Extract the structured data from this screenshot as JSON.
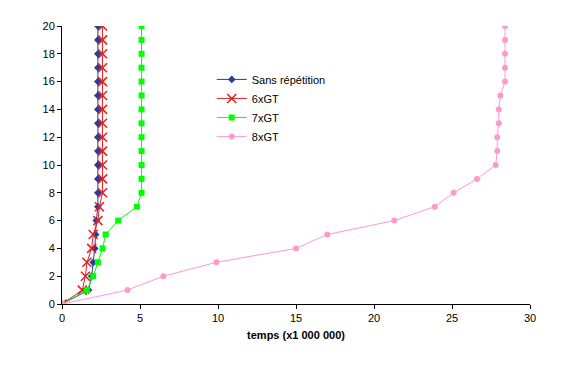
{
  "chart_data": {
    "type": "line",
    "x_label": "temps (x1 000 000)",
    "xlim": [
      0,
      30
    ],
    "xticks": [
      0,
      5,
      10,
      15,
      20,
      25,
      30
    ],
    "ylim": [
      0,
      20
    ],
    "yticks": [
      0,
      2,
      4,
      6,
      8,
      10,
      12,
      14,
      16,
      18,
      20
    ],
    "grid": false,
    "legend": "top",
    "series": [
      {
        "name": "Sans répétition",
        "color": "#2a3c9c",
        "marker": "diamond",
        "line_style": "solid",
        "x": [
          0,
          1.7,
          1.9,
          2.0,
          2.1,
          2.15,
          2.2,
          2.3,
          2.3,
          2.3,
          2.3,
          2.3,
          2.3,
          2.3,
          2.3,
          2.3,
          2.3,
          2.3,
          2.3,
          2.3,
          2.3
        ],
        "values": [
          0,
          1,
          2,
          3,
          4,
          5,
          6,
          7,
          8,
          9,
          10,
          11,
          12,
          13,
          14,
          15,
          16,
          17,
          18,
          19,
          20
        ]
      },
      {
        "name": "6xGT",
        "color": "#e02020",
        "marker": "x",
        "line_style": "solid",
        "x": [
          0,
          1.3,
          1.5,
          1.6,
          1.9,
          2.0,
          2.3,
          2.4,
          2.6,
          2.6,
          2.6,
          2.6,
          2.6,
          2.6,
          2.6,
          2.6,
          2.6,
          2.6,
          2.6,
          2.6,
          2.6
        ],
        "values": [
          0,
          1,
          2,
          3,
          4,
          5,
          6,
          7,
          8,
          9,
          10,
          11,
          12,
          13,
          14,
          15,
          16,
          17,
          18,
          19,
          20
        ]
      },
      {
        "name": "7xGT",
        "color": "#00ff00",
        "marker": "square",
        "line_style": "solid",
        "x": [
          0,
          1.6,
          2.0,
          2.3,
          2.6,
          2.8,
          3.6,
          4.8,
          5.1,
          5.1,
          5.1,
          5.1,
          5.1,
          5.1,
          5.1,
          5.1,
          5.1,
          5.1,
          5.1,
          5.1,
          5.1
        ],
        "values": [
          0,
          1,
          2,
          3,
          4,
          5,
          6,
          7,
          8,
          9,
          10,
          11,
          12,
          13,
          14,
          15,
          16,
          17,
          18,
          19,
          20
        ]
      },
      {
        "name": "8xGT",
        "color": "#ff99cc",
        "marker": "circle",
        "line_style": "solid",
        "x": [
          0,
          4.2,
          6.5,
          9.9,
          15.0,
          17.0,
          21.3,
          23.9,
          25.1,
          26.6,
          27.8,
          27.9,
          27.9,
          28.0,
          28.0,
          28.1,
          28.4,
          28.4,
          28.4,
          28.4,
          28.4
        ],
        "values": [
          0,
          1,
          2,
          3,
          4,
          5,
          6,
          7,
          8,
          9,
          10,
          11,
          12,
          13,
          14,
          15,
          16,
          17,
          18,
          19,
          20
        ]
      }
    ]
  }
}
